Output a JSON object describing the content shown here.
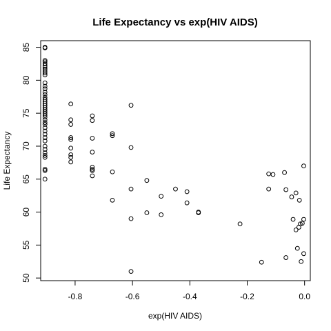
{
  "chart_data": {
    "type": "scatter",
    "title": "Life Expectancy vs  exp(HIV AIDS)",
    "xlabel": "exp(HIV AIDS)",
    "ylabel": "Life Expectancy",
    "xlim": [
      -0.92,
      0.02
    ],
    "ylim": [
      49.6,
      86.0
    ],
    "xticks": [
      -0.8,
      -0.6,
      -0.4,
      -0.2,
      0.0
    ],
    "xtick_labels": [
      "-0.8",
      "-0.6",
      "-0.4",
      "-0.2",
      "0.0"
    ],
    "yticks": [
      50,
      55,
      60,
      65,
      70,
      75,
      80,
      85
    ],
    "yticks_labels": [
      "50",
      "55",
      "60",
      "65",
      "70",
      "75",
      "80",
      "85"
    ],
    "grid": false,
    "marker": "open-circle",
    "points": [
      [
        -0.905,
        85.0
      ],
      [
        -0.905,
        84.9
      ],
      [
        -0.905,
        83.0
      ],
      [
        -0.905,
        82.8
      ],
      [
        -0.905,
        82.5
      ],
      [
        -0.905,
        82.2
      ],
      [
        -0.905,
        82.0
      ],
      [
        -0.905,
        81.7
      ],
      [
        -0.905,
        81.4
      ],
      [
        -0.905,
        81.1
      ],
      [
        -0.905,
        80.8
      ],
      [
        -0.905,
        79.6
      ],
      [
        -0.905,
        79.1
      ],
      [
        -0.905,
        78.7
      ],
      [
        -0.905,
        78.2
      ],
      [
        -0.905,
        77.8
      ],
      [
        -0.905,
        77.4
      ],
      [
        -0.905,
        77.1
      ],
      [
        -0.905,
        76.8
      ],
      [
        -0.905,
        76.5
      ],
      [
        -0.905,
        76.2
      ],
      [
        -0.905,
        75.9
      ],
      [
        -0.905,
        75.6
      ],
      [
        -0.905,
        75.3
      ],
      [
        -0.905,
        75.0
      ],
      [
        -0.905,
        74.7
      ],
      [
        -0.905,
        74.4
      ],
      [
        -0.905,
        74.0
      ],
      [
        -0.905,
        73.6
      ],
      [
        -0.905,
        73.3
      ],
      [
        -0.905,
        72.8
      ],
      [
        -0.905,
        72.3
      ],
      [
        -0.905,
        71.8
      ],
      [
        -0.905,
        71.3
      ],
      [
        -0.905,
        70.8
      ],
      [
        -0.905,
        70.0
      ],
      [
        -0.905,
        69.5
      ],
      [
        -0.905,
        69.0
      ],
      [
        -0.905,
        68.6
      ],
      [
        -0.905,
        68.3
      ],
      [
        -0.905,
        66.5
      ],
      [
        -0.905,
        66.3
      ],
      [
        -0.905,
        65.0
      ],
      [
        -0.815,
        76.4
      ],
      [
        -0.815,
        74.0
      ],
      [
        -0.815,
        73.3
      ],
      [
        -0.815,
        71.3
      ],
      [
        -0.815,
        71.0
      ],
      [
        -0.815,
        69.7
      ],
      [
        -0.815,
        68.7
      ],
      [
        -0.815,
        68.3
      ],
      [
        -0.815,
        67.6
      ],
      [
        -0.74,
        74.6
      ],
      [
        -0.74,
        73.9
      ],
      [
        -0.74,
        71.2
      ],
      [
        -0.74,
        69.1
      ],
      [
        -0.74,
        66.8
      ],
      [
        -0.74,
        66.5
      ],
      [
        -0.74,
        66.3
      ],
      [
        -0.74,
        65.5
      ],
      [
        -0.67,
        71.9
      ],
      [
        -0.67,
        71.6
      ],
      [
        -0.67,
        66.1
      ],
      [
        -0.67,
        61.8
      ],
      [
        -0.605,
        76.2
      ],
      [
        -0.605,
        69.8
      ],
      [
        -0.605,
        63.5
      ],
      [
        -0.605,
        59.0
      ],
      [
        -0.605,
        51.0
      ],
      [
        -0.55,
        64.8
      ],
      [
        -0.55,
        59.9
      ],
      [
        -0.5,
        62.4
      ],
      [
        -0.5,
        59.6
      ],
      [
        -0.45,
        63.5
      ],
      [
        -0.41,
        63.1
      ],
      [
        -0.41,
        61.4
      ],
      [
        -0.37,
        60.0
      ],
      [
        -0.37,
        59.9
      ],
      [
        -0.225,
        58.2
      ],
      [
        -0.15,
        52.4
      ],
      [
        -0.125,
        65.8
      ],
      [
        -0.125,
        63.5
      ],
      [
        -0.11,
        65.7
      ],
      [
        -0.07,
        66.0
      ],
      [
        -0.065,
        63.4
      ],
      [
        -0.065,
        53.1
      ],
      [
        -0.045,
        62.3
      ],
      [
        -0.04,
        58.9
      ],
      [
        -0.03,
        62.9
      ],
      [
        -0.03,
        57.3
      ],
      [
        -0.025,
        54.5
      ],
      [
        -0.02,
        57.7
      ],
      [
        -0.018,
        61.8
      ],
      [
        -0.015,
        58.2
      ],
      [
        -0.012,
        52.5
      ],
      [
        -0.008,
        58.3
      ],
      [
        -0.003,
        67.0
      ],
      [
        -0.003,
        58.9
      ],
      [
        -0.003,
        53.7
      ]
    ]
  }
}
